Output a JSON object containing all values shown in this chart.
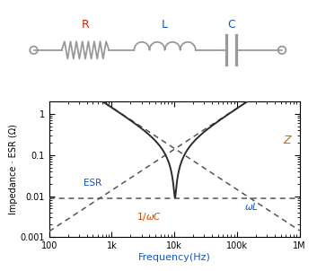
{
  "xlabel": "Frequency(Hz)",
  "ylabel": "Impedance · ESR (Ω)",
  "freq_min": 100,
  "freq_max": 1000000,
  "y_min": 0.001,
  "y_max": 2.0,
  "R": 0.009,
  "L": 2.2e-06,
  "C": 0.00011,
  "xticks": [
    100,
    1000,
    10000,
    100000,
    1000000
  ],
  "xticklabels": [
    "100",
    "1k",
    "10k",
    "100k",
    "1M"
  ],
  "yticks": [
    0.001,
    0.01,
    0.1,
    1
  ],
  "yticklabels": [
    "0.001",
    "0.01",
    "0.1",
    "1"
  ],
  "color_Z": "#2d2d2d",
  "color_dashed": "#555555",
  "color_R_label": "#cc2200",
  "color_L_label": "#1155cc",
  "color_C_label": "#1155cc",
  "color_Z_label": "#cc6600",
  "color_ESR_label": "#1155cc",
  "color_1wC_label": "#cc4400",
  "color_wL_label": "#1155cc",
  "color_xlabel": "#1155cc",
  "color_ylabel": "#000000",
  "circuit_gray": "#999999",
  "background": "#ffffff"
}
